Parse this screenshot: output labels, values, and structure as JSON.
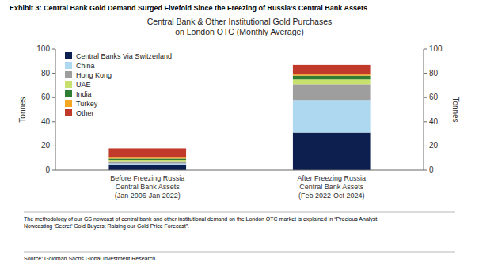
{
  "chart_data": {
    "type": "bar",
    "stacked": true,
    "title": "Exhibit 3: Central Bank Gold Demand Surged Fivefold Since the Freezing of Russia’s Central Bank Assets",
    "subtitle": "Central Bank & Other Institutional Gold Purchases\non London OTC (Monthly Average)",
    "ylabel": "Tonnes",
    "y2label": "Tonnes",
    "categories": [
      "Before Freezing Russia\nCentral Bank Assets\n(Jan 2006-Jan 2022)",
      "After Freezing Russia\nCentral Bank Assets\n(Feb 2022-Oct 2024)"
    ],
    "series": [
      {
        "name": "Central Banks Via Switzerland",
        "color": "#0d1f4e",
        "values": [
          4.0,
          31.0
        ]
      },
      {
        "name": "China",
        "color": "#add8f0",
        "values": [
          1.5,
          27.0
        ]
      },
      {
        "name": "Hong Kong",
        "color": "#9e9e9e",
        "values": [
          2.0,
          13.0
        ]
      },
      {
        "name": "UAE",
        "color": "#c8e06e",
        "values": [
          1.0,
          4.0
        ]
      },
      {
        "name": "India",
        "color": "#2e7d32",
        "values": [
          1.0,
          3.0
        ]
      },
      {
        "name": "Turkey",
        "color": "#f5a623",
        "values": [
          1.5,
          1.0
        ]
      },
      {
        "name": "Other",
        "color": "#c0392b",
        "values": [
          7.0,
          8.0
        ]
      }
    ],
    "ylim": [
      0,
      100
    ],
    "yticks": [
      0,
      20,
      40,
      60,
      80,
      100
    ],
    "y2lim": [
      0,
      100
    ],
    "y2ticks": [
      0,
      20,
      40,
      60,
      80,
      100
    ],
    "grid": false,
    "legend": "upper left",
    "footnote": "The methodology of our GS nowcast of central bank and other institutional demand on the London OTC market is explained in “Precious Analyst:\nNowcasting ‘Secret’ Gold Buyers; Raising our Gold Price Forecast”.",
    "source": "Source: Goldman Sachs Global Investment Research"
  }
}
